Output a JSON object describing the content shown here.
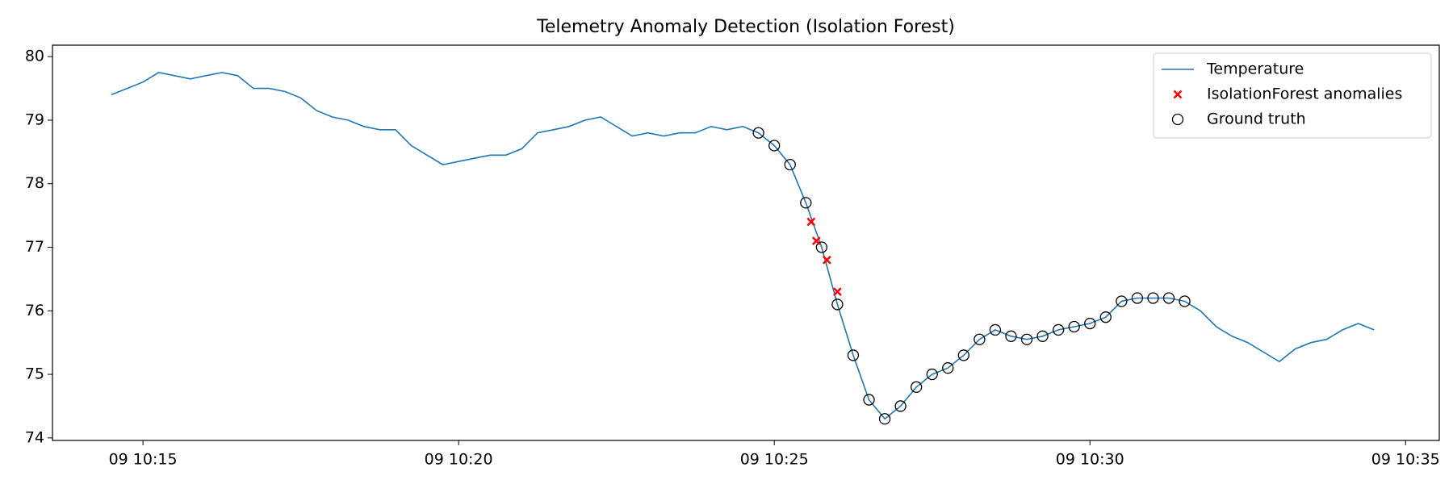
{
  "chart_data": {
    "type": "line",
    "title": "Telemetry Anomaly Detection (Isolation Forest)",
    "xlim": [
      "09 10:13:34",
      "09 10:35:32"
    ],
    "xticks": [
      "09 10:15",
      "09 10:20",
      "09 10:25",
      "09 10:30",
      "09 10:35"
    ],
    "ylim": [
      73.96,
      80.18
    ],
    "yticks": [
      74,
      75,
      76,
      77,
      78,
      79,
      80
    ],
    "legend": "upper right",
    "grid": false,
    "series": [
      {
        "name": "Temperature",
        "color": "#1f77b4",
        "marker": "line",
        "x": [
          "09 10:14:30",
          "09 10:14:45",
          "09 10:15:00",
          "09 10:15:15",
          "09 10:15:30",
          "09 10:15:45",
          "09 10:16:00",
          "09 10:16:15",
          "09 10:16:30",
          "09 10:16:45",
          "09 10:17:00",
          "09 10:17:15",
          "09 10:17:30",
          "09 10:17:45",
          "09 10:18:00",
          "09 10:18:15",
          "09 10:18:30",
          "09 10:18:45",
          "09 10:19:00",
          "09 10:19:15",
          "09 10:19:30",
          "09 10:19:45",
          "09 10:20:00",
          "09 10:20:15",
          "09 10:20:30",
          "09 10:20:45",
          "09 10:21:00",
          "09 10:21:15",
          "09 10:21:30",
          "09 10:21:45",
          "09 10:22:00",
          "09 10:22:15",
          "09 10:22:30",
          "09 10:22:45",
          "09 10:23:00",
          "09 10:23:15",
          "09 10:23:30",
          "09 10:23:45",
          "09 10:24:00",
          "09 10:24:15",
          "09 10:24:30",
          "09 10:24:45",
          "09 10:25:00",
          "09 10:25:15",
          "09 10:25:30",
          "09 10:25:45",
          "09 10:26:00",
          "09 10:26:15",
          "09 10:26:30",
          "09 10:26:45",
          "09 10:27:00",
          "09 10:27:15",
          "09 10:27:30",
          "09 10:27:45",
          "09 10:28:00",
          "09 10:28:15",
          "09 10:28:30",
          "09 10:28:45",
          "09 10:29:00",
          "09 10:29:15",
          "09 10:29:30",
          "09 10:29:45",
          "09 10:30:00",
          "09 10:30:15",
          "09 10:30:30",
          "09 10:30:45",
          "09 10:31:00",
          "09 10:31:15",
          "09 10:31:30",
          "09 10:31:45",
          "09 10:32:00",
          "09 10:32:15",
          "09 10:32:30",
          "09 10:32:45",
          "09 10:33:00",
          "09 10:33:15",
          "09 10:33:30",
          "09 10:33:45",
          "09 10:34:00",
          "09 10:34:15",
          "09 10:34:30"
        ],
        "values": [
          79.4,
          79.5,
          79.6,
          79.75,
          79.7,
          79.65,
          79.7,
          79.75,
          79.7,
          79.5,
          79.5,
          79.45,
          79.35,
          79.15,
          79.05,
          79.0,
          78.9,
          78.85,
          78.85,
          78.6,
          78.45,
          78.3,
          78.35,
          78.4,
          78.45,
          78.45,
          78.55,
          78.8,
          78.85,
          78.9,
          79.0,
          79.05,
          78.9,
          78.75,
          78.8,
          78.75,
          78.8,
          78.8,
          78.9,
          78.85,
          78.9,
          78.8,
          78.6,
          78.3,
          77.7,
          77.0,
          76.1,
          75.3,
          74.6,
          74.3,
          74.5,
          74.8,
          75.0,
          75.1,
          75.3,
          75.55,
          75.7,
          75.6,
          75.55,
          75.6,
          75.7,
          75.75,
          75.8,
          75.9,
          76.15,
          76.2,
          76.2,
          76.2,
          76.15,
          76.0,
          75.75,
          75.6,
          75.5,
          75.35,
          75.2,
          75.4,
          75.5,
          75.55,
          75.7,
          75.8,
          75.7
        ]
      },
      {
        "name": "IsolationForest anomalies",
        "color": "#ff0000",
        "marker": "x",
        "x": [
          "09 10:25:35",
          "09 10:25:40",
          "09 10:25:50",
          "09 10:26:00"
        ],
        "values": [
          77.4,
          77.1,
          76.8,
          76.3
        ]
      },
      {
        "name": "Ground truth",
        "color": "#000000",
        "marker": "o",
        "x": [
          "09 10:24:45",
          "09 10:25:00",
          "09 10:25:15",
          "09 10:25:30",
          "09 10:25:45",
          "09 10:26:00",
          "09 10:26:15",
          "09 10:26:30",
          "09 10:26:45",
          "09 10:27:00",
          "09 10:27:15",
          "09 10:27:30",
          "09 10:27:45",
          "09 10:28:00",
          "09 10:28:15",
          "09 10:28:30",
          "09 10:28:45",
          "09 10:29:00",
          "09 10:29:15",
          "09 10:29:30",
          "09 10:29:45",
          "09 10:30:00",
          "09 10:30:15",
          "09 10:30:30",
          "09 10:30:45",
          "09 10:31:00",
          "09 10:31:15",
          "09 10:31:30"
        ],
        "values": [
          78.8,
          78.6,
          78.3,
          77.7,
          77.0,
          76.1,
          75.3,
          74.6,
          74.3,
          74.5,
          74.8,
          75.0,
          75.1,
          75.3,
          75.55,
          75.7,
          75.6,
          75.55,
          75.6,
          75.7,
          75.75,
          75.8,
          75.9,
          76.15,
          76.2,
          76.2,
          76.2,
          76.15
        ]
      }
    ]
  }
}
